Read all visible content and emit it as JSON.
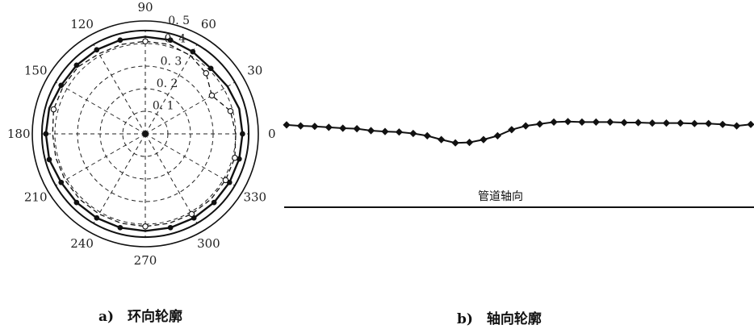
{
  "chart_data": [
    {
      "type": "polar",
      "caption": "a)　环向轮廓",
      "angle_ticks": [
        "0",
        "30",
        "60",
        "90",
        "120",
        "150",
        "180",
        "210",
        "240",
        "270",
        "300",
        "330"
      ],
      "angle_values": [
        0,
        30,
        60,
        90,
        120,
        150,
        180,
        210,
        240,
        270,
        300,
        330
      ],
      "radial_ticks": [
        "0. 1",
        "0. 2",
        "0. 3",
        "0. 4",
        "0. 5"
      ],
      "radial_values": [
        0.1,
        0.2,
        0.3,
        0.4,
        0.5
      ],
      "rlim": [
        0,
        0.5
      ],
      "grid": true,
      "series": [
        {
          "style": "solid-with-filled-dots",
          "theta": [
            0,
            15,
            30,
            45,
            60,
            75,
            90,
            105,
            120,
            135,
            150,
            165,
            180,
            195,
            210,
            225,
            240,
            255,
            270,
            285,
            300,
            315,
            330,
            345
          ],
          "r": [
            0.43,
            0.43,
            0.42,
            0.41,
            0.42,
            0.43,
            0.43,
            0.43,
            0.43,
            0.43,
            0.43,
            0.44,
            0.44,
            0.44,
            0.43,
            0.43,
            0.43,
            0.43,
            0.43,
            0.43,
            0.43,
            0.43,
            0.43,
            0.43
          ],
          "marked_theta": [
            0,
            45,
            60,
            75,
            105,
            120,
            135,
            150,
            180,
            195,
            210,
            225,
            240,
            255,
            285,
            300,
            315,
            330,
            345
          ]
        },
        {
          "style": "dashed-with-open-circles",
          "theta": [
            0,
            15,
            30,
            45,
            60,
            75,
            90,
            105,
            120,
            135,
            150,
            165,
            180,
            195,
            210,
            225,
            240,
            255,
            270,
            285,
            300,
            315,
            330,
            345
          ],
          "r": [
            0.4,
            0.39,
            0.34,
            0.38,
            0.4,
            0.41,
            0.41,
            0.41,
            0.41,
            0.42,
            0.42,
            0.42,
            0.41,
            0.41,
            0.41,
            0.41,
            0.41,
            0.41,
            0.41,
            0.41,
            0.41,
            0.41,
            0.41,
            0.41
          ],
          "marked_theta": [
            15,
            30,
            45,
            90,
            165,
            270,
            300,
            330,
            345
          ]
        }
      ]
    },
    {
      "type": "line",
      "caption": "b)　轴向轮廓",
      "reference_label": "管道轴向",
      "x": [
        0,
        1,
        2,
        3,
        4,
        5,
        6,
        7,
        8,
        9,
        10,
        11,
        12,
        13,
        14,
        15,
        16,
        17,
        18,
        19,
        20,
        21,
        22,
        23,
        24,
        25,
        26,
        27,
        28,
        29,
        30,
        31,
        32,
        33
      ],
      "y": [
        0.29,
        0.41,
        0.47,
        0.59,
        0.7,
        0.76,
        1.0,
        1.11,
        1.17,
        1.35,
        1.64,
        2.11,
        2.52,
        2.46,
        2.11,
        1.64,
        0.88,
        0.41,
        0.18,
        -0.06,
        -0.12,
        -0.06,
        -0.06,
        -0.06,
        0.0,
        0.0,
        0.06,
        0.06,
        0.06,
        0.12,
        0.12,
        0.23,
        0.41,
        0.23
      ],
      "axis_length": 33
    }
  ]
}
